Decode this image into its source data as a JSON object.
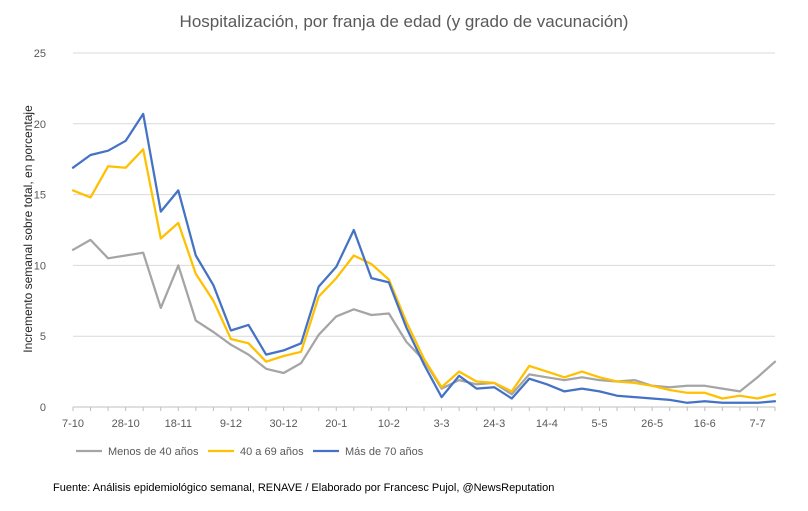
{
  "chart_data": {
    "type": "line",
    "title": "Hospitalización, por franja de edad (y grado de vacunación)",
    "xlabel": "",
    "ylabel": "Incremento semanal sobre total, en porcentaje",
    "ylim": [
      0,
      25
    ],
    "yticks": [
      0,
      5,
      10,
      15,
      20,
      25
    ],
    "grid": true,
    "legend_position": "bottom",
    "x_tick_labels": [
      "7-10",
      "28-10",
      "18-11",
      "9-12",
      "30-12",
      "20-1",
      "10-2",
      "3-3",
      "24-3",
      "14-4",
      "5-5",
      "26-5",
      "16-6",
      "7-7"
    ],
    "x_tick_every": 3,
    "series": [
      {
        "name": "Menos de 40 años",
        "color": "#A5A5A5",
        "values": [
          11.1,
          11.8,
          10.5,
          10.7,
          10.9,
          7.0,
          10.0,
          6.1,
          5.3,
          4.4,
          3.7,
          2.7,
          2.4,
          3.1,
          5.1,
          6.4,
          6.9,
          6.5,
          6.6,
          4.6,
          3.3,
          1.3,
          1.9,
          1.6,
          1.7,
          0.9,
          2.3,
          2.1,
          1.9,
          2.1,
          1.9,
          1.8,
          1.9,
          1.5,
          1.4,
          1.5,
          1.5,
          1.3,
          1.1,
          2.1,
          3.2
        ]
      },
      {
        "name": "40 a 69 años",
        "color": "#FFC000",
        "values": [
          15.3,
          14.8,
          17.0,
          16.9,
          18.2,
          11.9,
          13.0,
          9.4,
          7.5,
          4.8,
          4.5,
          3.2,
          3.6,
          3.9,
          7.8,
          9.1,
          10.7,
          10.1,
          9.0,
          6.0,
          3.4,
          1.4,
          2.5,
          1.8,
          1.7,
          1.1,
          2.9,
          2.5,
          2.1,
          2.5,
          2.1,
          1.8,
          1.7,
          1.5,
          1.2,
          1.0,
          1.0,
          0.6,
          0.8,
          0.6,
          0.9
        ]
      },
      {
        "name": "Más de 70 años",
        "color": "#4472C4",
        "values": [
          16.9,
          17.8,
          18.1,
          18.8,
          20.7,
          13.8,
          15.3,
          10.7,
          8.6,
          5.4,
          5.8,
          3.7,
          4.0,
          4.5,
          8.5,
          9.9,
          12.5,
          9.1,
          8.8,
          5.6,
          3.0,
          0.7,
          2.2,
          1.3,
          1.4,
          0.6,
          2.0,
          1.6,
          1.1,
          1.3,
          1.1,
          0.8,
          0.7,
          0.6,
          0.5,
          0.3,
          0.4,
          0.3,
          0.3,
          0.3,
          0.4
        ]
      }
    ],
    "source": "Fuente:  Análisis epidemiológico semanal, RENAVE / Elaborado por Francesc Pujol, @NewsReputation"
  }
}
